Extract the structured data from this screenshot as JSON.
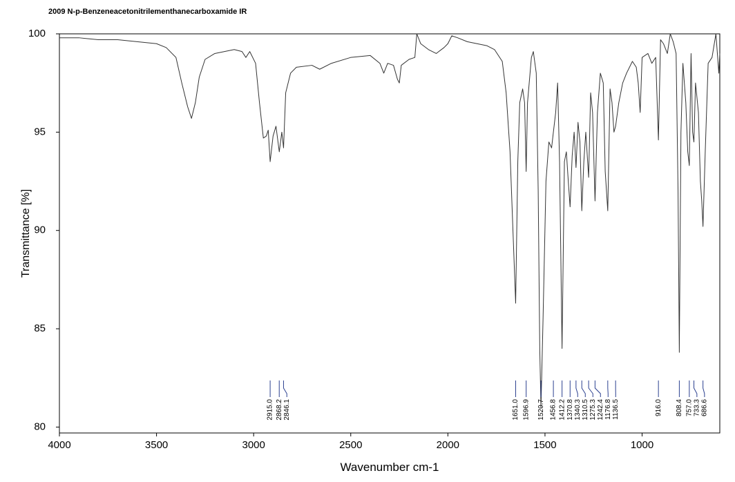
{
  "chart_data": {
    "type": "line",
    "title": "2009   N-p-Benzeneacetonitrilementhanecarboxamide   IR",
    "x_label": "Wavenumber cm-1",
    "y_label": "Transmittance [%]",
    "xlim": [
      4000,
      600
    ],
    "ylim": [
      79.7,
      100
    ],
    "xticks": [
      4000,
      3500,
      3000,
      2500,
      2000,
      1500,
      1000
    ],
    "yticks": [
      80,
      85,
      90,
      95,
      100
    ],
    "grid": false,
    "series": [
      {
        "color": "#333333",
        "x": [
          4000,
          3900,
          3800,
          3700,
          3600,
          3500,
          3450,
          3400,
          3370,
          3340,
          3320,
          3300,
          3280,
          3250,
          3200,
          3150,
          3100,
          3060,
          3040,
          3020,
          2990,
          2970,
          2950,
          2935,
          2925,
          2915,
          2900,
          2885,
          2868,
          2855,
          2846,
          2835,
          2810,
          2780,
          2700,
          2660,
          2600,
          2500,
          2400,
          2350,
          2330,
          2310,
          2280,
          2260,
          2250,
          2240,
          2200,
          2170,
          2160,
          2140,
          2100,
          2060,
          2020,
          2000,
          1980,
          1950,
          1900,
          1850,
          1800,
          1760,
          1720,
          1700,
          1680,
          1665,
          1651,
          1640,
          1630,
          1615,
          1605,
          1597,
          1590,
          1570,
          1560,
          1545,
          1535,
          1527,
          1520.7,
          1510,
          1495,
          1480,
          1466,
          1456.8,
          1445,
          1435,
          1425,
          1412.2,
          1400,
          1390,
          1380,
          1370.8,
          1360,
          1350,
          1340.3,
          1330,
          1320,
          1310.5,
          1300,
          1290,
          1275.3,
          1265,
          1255,
          1242.4,
          1230,
          1215,
          1200,
          1190,
          1176.8,
          1165,
          1155,
          1145,
          1136.5,
          1120,
          1100,
          1080,
          1050,
          1030,
          1020,
          1010,
          1000,
          970,
          950,
          930,
          916,
          905,
          890,
          870,
          855,
          840,
          825,
          815,
          808.4,
          800,
          790,
          775,
          765,
          757,
          748,
          740,
          733.3,
          725,
          710,
          700,
          693,
          686.6,
          675,
          660,
          640,
          620,
          605,
          600
        ],
        "values": [
          99.8,
          99.8,
          99.7,
          99.7,
          99.6,
          99.5,
          99.3,
          98.8,
          97.5,
          96.3,
          95.7,
          96.5,
          97.8,
          98.7,
          99.0,
          99.1,
          99.2,
          99.1,
          98.8,
          99.1,
          98.5,
          96.5,
          94.7,
          94.8,
          95.1,
          93.5,
          94.8,
          95.3,
          94.0,
          95.0,
          94.2,
          97.0,
          98.0,
          98.3,
          98.4,
          98.2,
          98.5,
          98.8,
          98.9,
          98.5,
          98.0,
          98.5,
          98.4,
          97.7,
          97.5,
          98.4,
          98.7,
          98.8,
          100.0,
          99.5,
          99.2,
          99.0,
          99.3,
          99.5,
          99.9,
          99.8,
          99.6,
          99.5,
          99.4,
          99.2,
          98.6,
          97.0,
          94.0,
          90.0,
          86.3,
          93.5,
          96.5,
          97.2,
          96.5,
          93.0,
          96.5,
          98.8,
          99.1,
          98.0,
          92.0,
          84.0,
          81.0,
          85.5,
          92.5,
          94.5,
          94.2,
          95.0,
          96.0,
          97.5,
          93.5,
          84.0,
          93.5,
          94.0,
          92.5,
          91.2,
          93.8,
          95.0,
          93.2,
          95.5,
          94.5,
          91.0,
          93.5,
          95.0,
          92.7,
          97.0,
          96.0,
          91.5,
          96.0,
          98.0,
          97.5,
          93.0,
          91.0,
          97.2,
          96.5,
          95.0,
          95.3,
          96.5,
          97.5,
          98.0,
          98.6,
          98.3,
          97.5,
          96.0,
          98.8,
          99.0,
          98.5,
          98.8,
          94.6,
          99.7,
          99.5,
          99.0,
          100.0,
          99.6,
          99.0,
          92.0,
          83.8,
          95.0,
          98.5,
          96.5,
          94.0,
          93.3,
          99.0,
          95.0,
          94.5,
          97.5,
          96.0,
          92.5,
          91.5,
          90.2,
          94.0,
          98.5,
          98.8,
          100.0,
          98.0,
          99.0
        ]
      }
    ],
    "peak_labels": [
      {
        "value": 2915.0,
        "label": "2915.0"
      },
      {
        "value": 2868.2,
        "label": "2868.2"
      },
      {
        "value": 2846.1,
        "label": "2846.1"
      },
      {
        "value": 1651.0,
        "label": "1651.0"
      },
      {
        "value": 1596.9,
        "label": "1596.9"
      },
      {
        "value": 1520.7,
        "label": "1520.7"
      },
      {
        "value": 1456.8,
        "label": "1456.8"
      },
      {
        "value": 1412.2,
        "label": "1412.2"
      },
      {
        "value": 1370.8,
        "label": "1370.8"
      },
      {
        "value": 1340.3,
        "label": "1340.3"
      },
      {
        "value": 1310.5,
        "label": "1310.5"
      },
      {
        "value": 1275.3,
        "label": "1275.3"
      },
      {
        "value": 1242.4,
        "label": "1242.4"
      },
      {
        "value": 1176.8,
        "label": "1176.8"
      },
      {
        "value": 1136.5,
        "label": "1136.5"
      },
      {
        "value": 916.0,
        "label": "916.0"
      },
      {
        "value": 808.4,
        "label": "808.4"
      },
      {
        "value": 757.0,
        "label": "757.0"
      },
      {
        "value": 733.3,
        "label": "733.3"
      },
      {
        "value": 686.6,
        "label": "686.6"
      }
    ]
  }
}
